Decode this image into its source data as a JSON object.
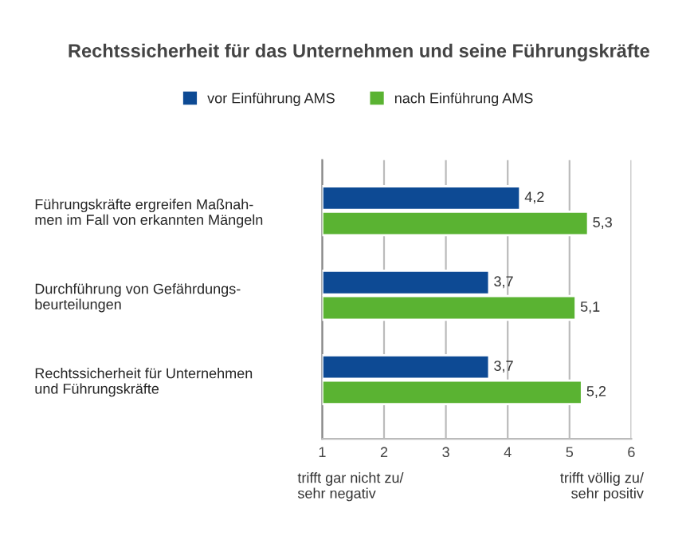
{
  "chart_data": {
    "type": "bar",
    "orientation": "horizontal",
    "title": "Rechtssicherheit für das Unternehmen und seine Führungskräfte",
    "categories": [
      "Führungskräfte ergreifen Maßnah-\nmen im Fall von erkannten Mängeln",
      "Durchführung von Gefährdungs-\nbeurteilungen",
      "Rechtssicherheit für Unternehmen\nund Führungskräfte"
    ],
    "series": [
      {
        "name": "vor Einführung AMS",
        "color": "#0d4a94",
        "values": [
          4.2,
          3.7,
          3.7
        ],
        "value_labels": [
          "4,2",
          "3,7",
          "3,7"
        ]
      },
      {
        "name": "nach Einführung AMS",
        "color": "#5ab332",
        "values": [
          5.3,
          5.1,
          5.2
        ],
        "value_labels": [
          "5,3",
          "5,1",
          "5,2"
        ]
      }
    ],
    "xlim": [
      1,
      6
    ],
    "xticks": [
      1,
      2,
      3,
      4,
      5,
      6
    ],
    "grid": "x",
    "legend": "top",
    "annotations": [
      "trifft gar nicht zu/\nsehr negativ",
      "trifft völlig zu/\nsehr positiv"
    ]
  }
}
